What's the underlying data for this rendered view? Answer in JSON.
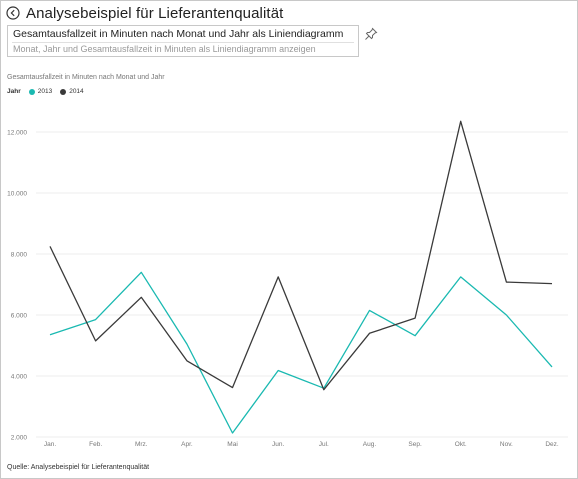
{
  "header": {
    "title": "Analysebeispiel für Lieferantenqualität",
    "back_icon": "back-circle-icon"
  },
  "qa": {
    "value": "Gesamtausfallzeit in Minuten nach Monat und Jahr als Liniendiagramm",
    "suggestion": "Monat, Jahr und Gesamtausfallzeit in Minuten als Liniendiagramm anzeigen",
    "pin_icon": "pin-icon"
  },
  "colors": {
    "series_2013": "#1ab9b1",
    "series_2014": "#3a3a3a",
    "grid": "#ececec",
    "axis_text": "#777777"
  },
  "chart_data": {
    "type": "line",
    "title": "Gesamtausfallzeit in Minuten nach Monat und Jahr",
    "legend_title": "Jahr",
    "legend_position": "top-left",
    "categories": [
      "Jan.",
      "Feb.",
      "Mrz.",
      "Apr.",
      "Mai",
      "Jun.",
      "Jul.",
      "Aug.",
      "Sep.",
      "Okt.",
      "Nov.",
      "Dez."
    ],
    "series": [
      {
        "name": "2013",
        "values": [
          5350,
          5850,
          7400,
          5050,
          2130,
          4180,
          3600,
          6150,
          5320,
          7250,
          6000,
          4300
        ]
      },
      {
        "name": "2014",
        "values": [
          8250,
          5150,
          6580,
          4500,
          3620,
          7250,
          3550,
          5400,
          5900,
          12350,
          7080,
          7030
        ]
      }
    ],
    "y_ticks": [
      2000,
      4000,
      6000,
      8000,
      10000,
      12000
    ],
    "y_tick_labels": [
      "2.000",
      "4.000",
      "6.000",
      "8.000",
      "10.000",
      "12.000"
    ],
    "ylim": [
      2000,
      12900
    ],
    "grid": true
  },
  "footer": {
    "source": "Quelle: Analysebeispiel für Lieferantenqualität"
  }
}
